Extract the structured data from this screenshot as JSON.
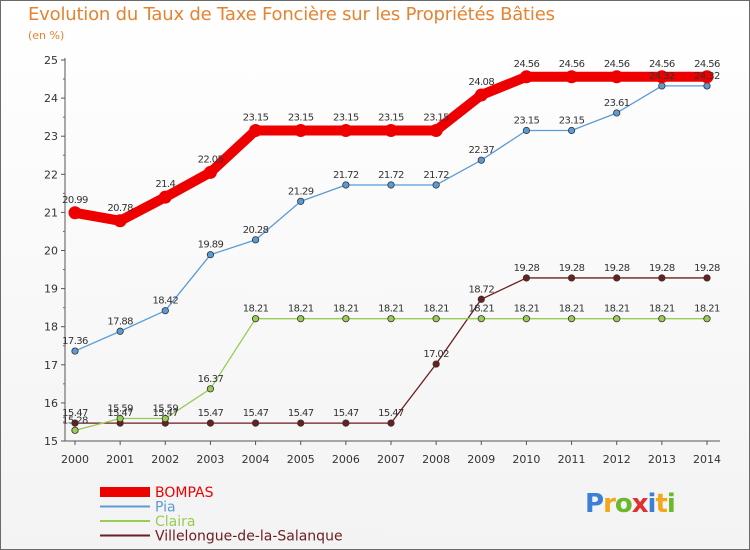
{
  "title": "Evolution du Taux de Taxe Foncière sur les Propriétés Bâties",
  "subtitle": "(en %)",
  "logo": {
    "text": "Proxiti",
    "letters": [
      {
        "ch": "P",
        "color": "#3b7fd6"
      },
      {
        "ch": "r",
        "color": "#f2a81d"
      },
      {
        "ch": "o",
        "color": "#6bb82a"
      },
      {
        "ch": "x",
        "color": "#e03030"
      },
      {
        "ch": "i",
        "color": "#3b7fd6"
      },
      {
        "ch": "t",
        "color": "#f2a81d"
      },
      {
        "ch": "i",
        "color": "#6bb82a"
      }
    ]
  },
  "chart_data": {
    "type": "line",
    "title": "Evolution du Taux de Taxe Foncière sur les Propriétés Bâties",
    "ylabel": "(en %)",
    "xlabel": "",
    "ylim": [
      15,
      25
    ],
    "yticks": [
      15,
      16,
      17,
      18,
      19,
      20,
      21,
      22,
      23,
      24,
      25
    ],
    "grid": false,
    "legend_position": "bottom-left",
    "x": [
      "2000",
      "2001",
      "2002",
      "2003",
      "2004",
      "2005",
      "2006",
      "2007",
      "2008",
      "2009",
      "2010",
      "2011",
      "2012",
      "2013",
      "2014"
    ],
    "series": [
      {
        "name": "BOMPAS",
        "color": "#ee0000",
        "values": [
          20.99,
          20.78,
          21.4,
          22.05,
          23.15,
          23.15,
          23.15,
          23.15,
          23.15,
          24.08,
          24.56,
          24.56,
          24.56,
          24.56,
          24.56
        ],
        "labels": [
          "20.99",
          "20.78",
          "21.4",
          "22.05",
          "23.15",
          "23.15",
          "23.15",
          "23.15",
          "23.15",
          "24.08",
          "24.56",
          "24.56",
          "24.56",
          "24.56",
          "24.56"
        ]
      },
      {
        "name": "Pia",
        "color": "#5b9bd5",
        "values": [
          17.36,
          17.88,
          18.42,
          19.89,
          20.28,
          21.29,
          21.72,
          21.72,
          21.72,
          22.37,
          23.15,
          23.15,
          23.61,
          24.32,
          24.32
        ],
        "labels": [
          "17.36",
          "17.88",
          "18.42",
          "19.89",
          "20.28",
          "21.29",
          "21.72",
          "21.72",
          "21.72",
          "22.37",
          "23.15",
          "23.15",
          "23.61",
          "24.32",
          "24.32"
        ]
      },
      {
        "name": "Claira",
        "color": "#99cc55",
        "values": [
          15.28,
          15.59,
          15.59,
          16.37,
          18.21,
          18.21,
          18.21,
          18.21,
          18.21,
          18.21,
          18.21,
          18.21,
          18.21,
          18.21,
          18.21
        ],
        "labels": [
          "15.28",
          "15.59",
          "15.59",
          "16.37",
          "18.21",
          "18.21",
          "18.21",
          "18.21",
          "18.21",
          "18.21",
          "18.21",
          "18.21",
          "18.21",
          "18.21",
          "18.21"
        ]
      },
      {
        "name": "Villelongue-de-la-Salanque",
        "color": "#6b1f1f",
        "values": [
          15.47,
          15.47,
          15.47,
          15.47,
          15.47,
          15.47,
          15.47,
          15.47,
          17.02,
          18.72,
          19.28,
          19.28,
          19.28,
          19.28,
          19.28
        ],
        "labels": [
          "15.47",
          "15.47",
          "15.47",
          "15.47",
          "15.47",
          "15.47",
          "15.47",
          "15.47",
          "17.02",
          "18.72",
          "19.28",
          "19.28",
          "19.28",
          "19.28",
          "19.28"
        ]
      }
    ]
  }
}
